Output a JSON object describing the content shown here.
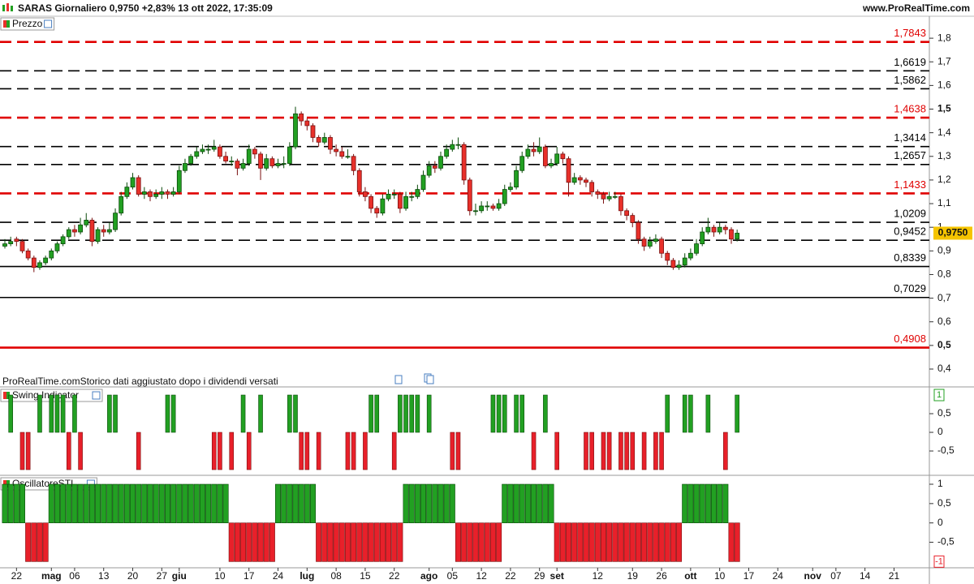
{
  "header": {
    "title": "SARAS Giornaliero 0,9750 +2,83% 13 ott 2022, 17:35:09",
    "site": "www.ProRealTime.com"
  },
  "note": "ProRealTime.comStorico dati aggiustato dopo i dividendi versati",
  "chart_data": [
    {
      "type": "candlestick",
      "title": "Prezzo",
      "up_color": "#22a022",
      "down_color": "#e8302a",
      "xlim": [
        -0.84,
        159.08
      ],
      "ylim": [
        0.376,
        1.893
      ],
      "yticks": [
        {
          "value": 1.8,
          "label": "1,8"
        },
        {
          "value": 1.7,
          "label": "1,7"
        },
        {
          "value": 1.6,
          "label": "1,6"
        },
        {
          "value": 1.5,
          "label": "1,5"
        },
        {
          "value": 1.4,
          "label": "1,4"
        },
        {
          "value": 1.3,
          "label": "1,3"
        },
        {
          "value": 1.2,
          "label": "1,2"
        },
        {
          "value": 1.1,
          "label": "1,1"
        },
        1,
        {
          "value": 0.9,
          "label": "0,9"
        },
        {
          "value": 0.8,
          "label": "0,8"
        },
        {
          "value": 0.7,
          "label": "0,7"
        },
        {
          "value": 0.6,
          "label": "0,6"
        },
        {
          "value": 0.5,
          "label": "0,5"
        },
        {
          "value": 0.4,
          "label": "0,4"
        }
      ],
      "levels": [
        {
          "value": 1.7843,
          "label": "1,7843",
          "color": "#e00000",
          "style": "dashed"
        },
        {
          "value": 1.6619,
          "label": "1,6619",
          "color": "#000000",
          "style": "dashed"
        },
        {
          "value": 1.5862,
          "label": "1,5862",
          "color": "#000000",
          "style": "dashed"
        },
        {
          "value": 1.4638,
          "label": "1,4638",
          "color": "#e00000",
          "style": "dashed"
        },
        {
          "value": 1.3414,
          "label": "1,3414",
          "color": "#000000",
          "style": "dashed"
        },
        {
          "value": 1.2657,
          "label": "1,2657",
          "color": "#000000",
          "style": "dashed"
        },
        {
          "value": 1.1433,
          "label": "1,1433",
          "color": "#e00000",
          "style": "dashed"
        },
        {
          "value": 1.0209,
          "label": "1,0209",
          "color": "#000000",
          "style": "dashed"
        },
        {
          "value": 0.9452,
          "label": "0,9452",
          "color": "#000000",
          "style": "dashed"
        },
        {
          "value": 0.8339,
          "label": "0,8339",
          "color": "#000000",
          "style": "solid"
        },
        {
          "value": 0.7029,
          "label": "0,7029",
          "color": "#000000",
          "style": "solid"
        },
        {
          "value": 0.4908,
          "label": "0,4908",
          "color": "#e00000",
          "style": "solid"
        }
      ],
      "last": {
        "value": 0.975,
        "label": "0,9750"
      },
      "candles": [
        [
          0.92,
          0.95,
          0.91,
          0.93
        ],
        [
          0.93,
          0.96,
          0.92,
          0.94
        ],
        [
          0.95,
          0.96,
          0.92,
          0.94
        ],
        [
          0.94,
          0.95,
          0.89,
          0.9
        ],
        [
          0.9,
          0.91,
          0.86,
          0.87
        ],
        [
          0.87,
          0.88,
          0.81,
          0.83
        ],
        [
          0.83,
          0.86,
          0.82,
          0.85
        ],
        [
          0.85,
          0.88,
          0.84,
          0.87
        ],
        [
          0.87,
          0.91,
          0.86,
          0.9
        ],
        [
          0.9,
          0.94,
          0.89,
          0.93
        ],
        [
          0.93,
          0.97,
          0.92,
          0.96
        ],
        [
          0.96,
          1.0,
          0.95,
          0.99
        ],
        [
          0.99,
          1.01,
          0.96,
          0.98
        ],
        [
          0.98,
          1.04,
          0.97,
          1.01
        ],
        [
          1.01,
          1.06,
          1.0,
          1.03
        ],
        [
          1.03,
          1.04,
          0.92,
          0.94
        ],
        [
          0.94,
          1.0,
          0.93,
          0.99
        ],
        [
          0.99,
          1.01,
          0.96,
          0.98
        ],
        [
          0.98,
          1.02,
          0.97,
          0.99
        ],
        [
          0.99,
          1.08,
          0.98,
          1.06
        ],
        [
          1.06,
          1.15,
          1.05,
          1.13
        ],
        [
          1.13,
          1.19,
          1.12,
          1.17
        ],
        [
          1.17,
          1.23,
          1.16,
          1.21
        ],
        [
          1.21,
          1.22,
          1.13,
          1.14
        ],
        [
          1.14,
          1.17,
          1.12,
          1.15
        ],
        [
          1.15,
          1.16,
          1.11,
          1.13
        ],
        [
          1.13,
          1.16,
          1.12,
          1.14
        ],
        [
          1.14,
          1.17,
          1.12,
          1.15
        ],
        [
          1.15,
          1.16,
          1.12,
          1.14
        ],
        [
          1.14,
          1.17,
          1.13,
          1.15
        ],
        [
          1.15,
          1.26,
          1.14,
          1.24
        ],
        [
          1.24,
          1.29,
          1.23,
          1.27
        ],
        [
          1.27,
          1.31,
          1.26,
          1.3
        ],
        [
          1.3,
          1.34,
          1.29,
          1.32
        ],
        [
          1.32,
          1.35,
          1.31,
          1.33
        ],
        [
          1.33,
          1.35,
          1.31,
          1.33
        ],
        [
          1.33,
          1.37,
          1.32,
          1.34
        ],
        [
          1.34,
          1.35,
          1.29,
          1.3
        ],
        [
          1.3,
          1.32,
          1.27,
          1.28
        ],
        [
          1.28,
          1.3,
          1.26,
          1.28
        ],
        [
          1.28,
          1.29,
          1.22,
          1.25
        ],
        [
          1.25,
          1.29,
          1.24,
          1.27
        ],
        [
          1.27,
          1.35,
          1.26,
          1.33
        ],
        [
          1.33,
          1.34,
          1.29,
          1.31
        ],
        [
          1.31,
          1.32,
          1.2,
          1.25
        ],
        [
          1.25,
          1.31,
          1.24,
          1.29
        ],
        [
          1.29,
          1.3,
          1.25,
          1.26
        ],
        [
          1.26,
          1.29,
          1.25,
          1.27
        ],
        [
          1.27,
          1.3,
          1.25,
          1.27
        ],
        [
          1.27,
          1.36,
          1.26,
          1.34
        ],
        [
          1.34,
          1.51,
          1.33,
          1.48
        ],
        [
          1.48,
          1.49,
          1.43,
          1.45
        ],
        [
          1.45,
          1.46,
          1.41,
          1.43
        ],
        [
          1.43,
          1.44,
          1.36,
          1.38
        ],
        [
          1.38,
          1.39,
          1.34,
          1.36
        ],
        [
          1.36,
          1.4,
          1.35,
          1.38
        ],
        [
          1.38,
          1.39,
          1.31,
          1.33
        ],
        [
          1.33,
          1.35,
          1.3,
          1.32
        ],
        [
          1.32,
          1.34,
          1.29,
          1.3
        ],
        [
          1.3,
          1.33,
          1.29,
          1.3
        ],
        [
          1.3,
          1.31,
          1.22,
          1.24
        ],
        [
          1.24,
          1.25,
          1.13,
          1.15
        ],
        [
          1.15,
          1.17,
          1.11,
          1.13
        ],
        [
          1.13,
          1.14,
          1.06,
          1.08
        ],
        [
          1.08,
          1.09,
          1.04,
          1.06
        ],
        [
          1.06,
          1.14,
          1.05,
          1.12
        ],
        [
          1.12,
          1.16,
          1.11,
          1.14
        ],
        [
          1.14,
          1.16,
          1.12,
          1.14
        ],
        [
          1.14,
          1.15,
          1.06,
          1.08
        ],
        [
          1.08,
          1.15,
          1.07,
          1.13
        ],
        [
          1.13,
          1.15,
          1.11,
          1.13
        ],
        [
          1.13,
          1.18,
          1.12,
          1.16
        ],
        [
          1.16,
          1.24,
          1.15,
          1.22
        ],
        [
          1.22,
          1.28,
          1.21,
          1.26
        ],
        [
          1.26,
          1.28,
          1.23,
          1.25
        ],
        [
          1.25,
          1.32,
          1.24,
          1.3
        ],
        [
          1.3,
          1.35,
          1.29,
          1.33
        ],
        [
          1.33,
          1.37,
          1.32,
          1.35
        ],
        [
          1.35,
          1.38,
          1.33,
          1.35
        ],
        [
          1.35,
          1.36,
          1.18,
          1.2
        ],
        [
          1.2,
          1.21,
          1.05,
          1.07
        ],
        [
          1.07,
          1.1,
          1.05,
          1.07
        ],
        [
          1.07,
          1.11,
          1.06,
          1.09
        ],
        [
          1.09,
          1.11,
          1.07,
          1.09
        ],
        [
          1.09,
          1.1,
          1.07,
          1.08
        ],
        [
          1.08,
          1.12,
          1.07,
          1.1
        ],
        [
          1.1,
          1.18,
          1.09,
          1.16
        ],
        [
          1.16,
          1.19,
          1.15,
          1.17
        ],
        [
          1.17,
          1.26,
          1.16,
          1.24
        ],
        [
          1.24,
          1.32,
          1.23,
          1.3
        ],
        [
          1.3,
          1.35,
          1.29,
          1.33
        ],
        [
          1.33,
          1.36,
          1.3,
          1.32
        ],
        [
          1.32,
          1.38,
          1.31,
          1.34
        ],
        [
          1.34,
          1.35,
          1.25,
          1.26
        ],
        [
          1.26,
          1.29,
          1.25,
          1.27
        ],
        [
          1.27,
          1.34,
          1.26,
          1.31
        ],
        [
          1.31,
          1.32,
          1.27,
          1.29
        ],
        [
          1.29,
          1.3,
          1.13,
          1.19
        ],
        [
          1.19,
          1.23,
          1.18,
          1.21
        ],
        [
          1.21,
          1.22,
          1.18,
          1.2
        ],
        [
          1.2,
          1.21,
          1.17,
          1.19
        ],
        [
          1.19,
          1.2,
          1.13,
          1.15
        ],
        [
          1.15,
          1.16,
          1.12,
          1.14
        ],
        [
          1.14,
          1.15,
          1.1,
          1.12
        ],
        [
          1.12,
          1.15,
          1.11,
          1.13
        ],
        [
          1.13,
          1.15,
          1.12,
          1.13
        ],
        [
          1.13,
          1.14,
          1.05,
          1.07
        ],
        [
          1.07,
          1.08,
          1.03,
          1.05
        ],
        [
          1.05,
          1.06,
          1.0,
          1.02
        ],
        [
          1.02,
          1.03,
          0.93,
          0.95
        ],
        [
          0.95,
          0.96,
          0.9,
          0.92
        ],
        [
          0.92,
          0.96,
          0.91,
          0.94
        ],
        [
          0.94,
          0.97,
          0.93,
          0.95
        ],
        [
          0.95,
          0.96,
          0.87,
          0.89
        ],
        [
          0.89,
          0.9,
          0.84,
          0.86
        ],
        [
          0.86,
          0.87,
          0.82,
          0.83
        ],
        [
          0.83,
          0.86,
          0.82,
          0.84
        ],
        [
          0.84,
          0.89,
          0.83,
          0.87
        ],
        [
          0.87,
          0.91,
          0.86,
          0.89
        ],
        [
          0.89,
          0.95,
          0.88,
          0.93
        ],
        [
          0.93,
          1.0,
          0.92,
          0.98
        ],
        [
          0.98,
          1.04,
          0.97,
          1.0
        ],
        [
          1.0,
          1.01,
          0.96,
          0.98
        ],
        [
          0.98,
          1.02,
          0.97,
          1.0
        ],
        [
          1.0,
          1.01,
          0.97,
          0.99
        ],
        [
          0.99,
          1.0,
          0.93,
          0.95
        ],
        [
          0.95,
          0.99,
          0.94,
          0.975
        ]
      ]
    },
    {
      "type": "bar",
      "title": "Swing Indicator",
      "up_color": "#22a022",
      "down_color": "#e8202a",
      "xlim": [
        -0.84,
        159.08
      ],
      "ylim": [
        -1.13,
        1.196
      ],
      "yticks": [
        {
          "value": 0.5,
          "label": "0,5"
        },
        0,
        {
          "value": -0.5,
          "label": "-0,5"
        }
      ],
      "last": 1,
      "values": [
        0,
        1,
        0,
        -1,
        -1,
        0,
        1,
        0,
        1,
        1,
        1,
        -1,
        1,
        -1,
        0,
        0,
        0,
        0,
        1,
        1,
        0,
        0,
        0,
        -1,
        0,
        0,
        0,
        0,
        1,
        1,
        0,
        0,
        0,
        0,
        0,
        0,
        -1,
        -1,
        0,
        -1,
        0,
        1,
        -1,
        0,
        1,
        0,
        0,
        0,
        0,
        1,
        1,
        -1,
        -1,
        0,
        -1,
        0,
        0,
        0,
        0,
        -1,
        -1,
        0,
        -1,
        1,
        1,
        0,
        0,
        -1,
        1,
        1,
        1,
        1,
        0,
        1,
        0,
        0,
        0,
        -1,
        -1,
        0,
        0,
        0,
        0,
        0,
        1,
        1,
        1,
        0,
        1,
        1,
        0,
        -1,
        0,
        1,
        0,
        -1,
        0,
        0,
        0,
        0,
        -1,
        -1,
        0,
        -1,
        -1,
        0,
        -1,
        -1,
        -1,
        0,
        -1,
        0,
        -1,
        -1,
        1,
        0,
        0,
        1,
        1,
        0,
        0,
        1,
        0,
        0,
        -1,
        0,
        1
      ]
    },
    {
      "type": "bar",
      "title": "OscillatoreSTI",
      "up_color": "#22a022",
      "down_color": "#e8202a",
      "xlim": [
        -0.84,
        159.08
      ],
      "ylim": [
        -1.16,
        1.21
      ],
      "yticks": [
        1,
        {
          "value": 0.5,
          "label": "0,5"
        },
        0,
        {
          "value": -0.5,
          "label": "-0,5"
        }
      ],
      "last": -1,
      "values": [
        1,
        1,
        1,
        1,
        -1,
        -1,
        -1,
        -1,
        1,
        1,
        1,
        1,
        1,
        1,
        1,
        1,
        1,
        1,
        1,
        1,
        1,
        1,
        1,
        1,
        1,
        1,
        1,
        1,
        1,
        1,
        1,
        1,
        1,
        1,
        1,
        1,
        1,
        1,
        1,
        -1,
        -1,
        -1,
        -1,
        -1,
        -1,
        -1,
        -1,
        1,
        1,
        1,
        1,
        1,
        1,
        1,
        -1,
        -1,
        -1,
        -1,
        -1,
        -1,
        -1,
        -1,
        -1,
        -1,
        -1,
        -1,
        -1,
        -1,
        -1,
        1,
        1,
        1,
        1,
        1,
        1,
        1,
        1,
        1,
        -1,
        -1,
        -1,
        -1,
        -1,
        -1,
        -1,
        -1,
        1,
        1,
        1,
        1,
        1,
        1,
        1,
        1,
        1,
        -1,
        -1,
        -1,
        -1,
        -1,
        -1,
        -1,
        -1,
        -1,
        -1,
        -1,
        -1,
        -1,
        -1,
        -1,
        -1,
        -1,
        -1,
        -1,
        -1,
        -1,
        -1,
        1,
        1,
        1,
        1,
        1,
        1,
        1,
        1,
        -1,
        -1
      ],
      "xticks": [
        {
          "value": 2,
          "label": "22"
        },
        {
          "value": 8,
          "label": "mag"
        },
        {
          "value": 12,
          "label": "06"
        },
        {
          "value": 17,
          "label": "13"
        },
        {
          "value": 22,
          "label": "20"
        },
        {
          "value": 27,
          "label": "27"
        },
        {
          "value": 30,
          "label": "giu"
        },
        {
          "value": 37,
          "label": "10"
        },
        {
          "value": 42,
          "label": "17"
        },
        {
          "value": 47,
          "label": "24"
        },
        {
          "value": 52,
          "label": "lug"
        },
        {
          "value": 57,
          "label": "08"
        },
        {
          "value": 62,
          "label": "15"
        },
        {
          "value": 67,
          "label": "22"
        },
        {
          "value": 73,
          "label": "ago"
        },
        {
          "value": 77,
          "label": "05"
        },
        {
          "value": 82,
          "label": "12"
        },
        {
          "value": 87,
          "label": "22"
        },
        {
          "value": 92,
          "label": "29"
        },
        {
          "value": 95,
          "label": "set"
        },
        {
          "value": 102,
          "label": "12"
        },
        {
          "value": 108,
          "label": "19"
        },
        {
          "value": 113,
          "label": "26"
        },
        {
          "value": 118,
          "label": "ott"
        },
        {
          "value": 123,
          "label": "10"
        },
        {
          "value": 128,
          "label": "17"
        },
        {
          "value": 133,
          "label": "24"
        },
        {
          "value": 139,
          "label": "nov"
        },
        {
          "value": 143,
          "label": "07"
        },
        {
          "value": 148,
          "label": "14"
        },
        {
          "value": 153,
          "label": "21"
        }
      ]
    }
  ]
}
